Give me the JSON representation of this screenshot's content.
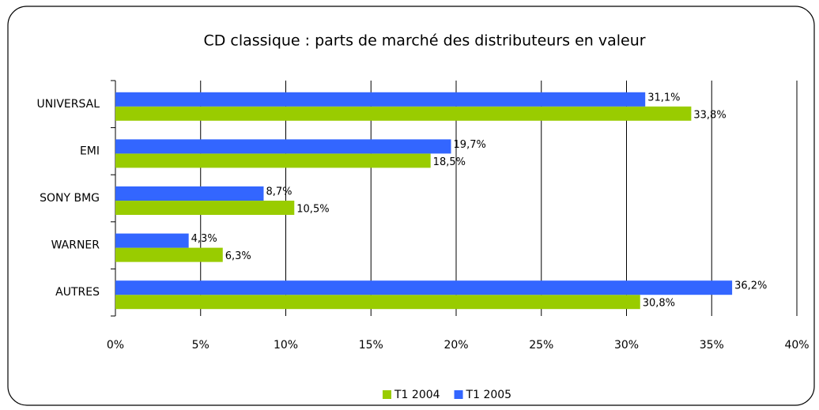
{
  "chart_data": {
    "type": "hbar",
    "title": "CD classique : parts de marché des distributeurs en valeur",
    "categories": [
      "UNIVERSAL",
      "EMI",
      "SONY BMG",
      "WARNER",
      "AUTRES"
    ],
    "series": [
      {
        "name": "T1 2004",
        "color": "#99cc00",
        "values": [
          33.8,
          18.5,
          10.5,
          6.3,
          30.8
        ],
        "value_labels": [
          "33,8%",
          "18,5%",
          "10,5%",
          "6,3%",
          "30,8%"
        ]
      },
      {
        "name": "T1 2005",
        "color": "#3366ff",
        "values": [
          31.1,
          19.7,
          8.7,
          4.3,
          36.2
        ],
        "value_labels": [
          "31,1%",
          "19,7%",
          "8,7%",
          "4,3%",
          "36,2%"
        ]
      }
    ],
    "xlim": [
      0,
      40
    ],
    "xticks": [
      {
        "value": 0,
        "label": "0%"
      },
      {
        "value": 5,
        "label": "5%"
      },
      {
        "value": 10,
        "label": "10%"
      },
      {
        "value": 15,
        "label": "15%"
      },
      {
        "value": 20,
        "label": "20%"
      },
      {
        "value": 25,
        "label": "25%"
      },
      {
        "value": 30,
        "label": "30%"
      },
      {
        "value": 35,
        "label": "35%"
      },
      {
        "value": 40,
        "label": "40%"
      }
    ],
    "grid": true,
    "legend": "bottom"
  }
}
